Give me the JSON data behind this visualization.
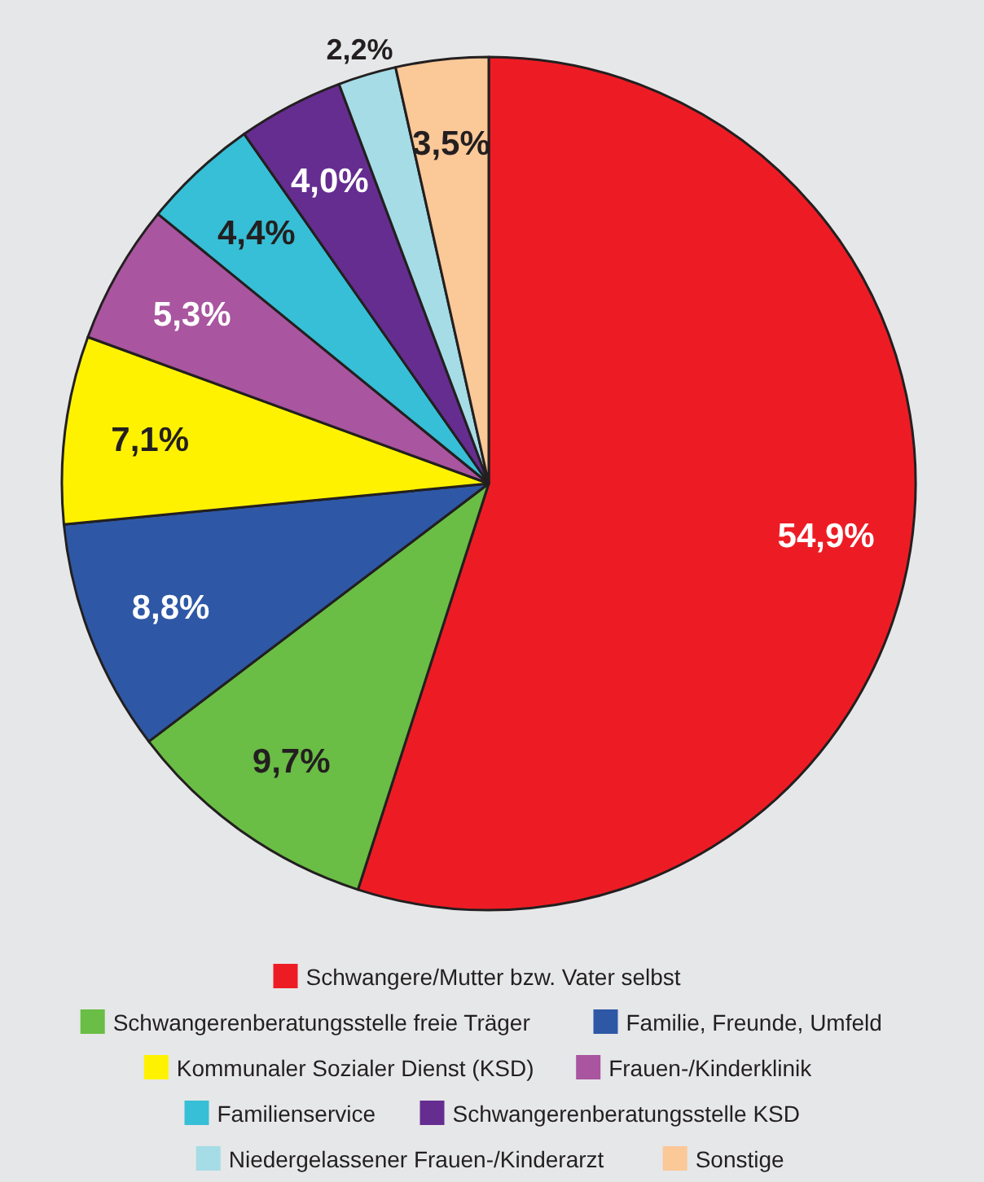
{
  "chart_data": {
    "type": "pie",
    "categories": [
      "Schwangere/Mutter bzw. Vater selbst",
      "Schwangerenberatungsstelle freie Träger",
      "Familie, Freunde, Umfeld",
      "Kommunaler Sozialer Dienst (KSD)",
      "Frauen-/Kinderklinik",
      "Familienservice",
      "Schwangerenberatungsstelle KSD",
      "Niedergelassener Frauen-/Kinderarzt",
      "Sonstige"
    ],
    "values": [
      54.9,
      9.7,
      8.8,
      7.1,
      5.3,
      4.4,
      4.0,
      2.2,
      3.5
    ],
    "value_labels": [
      "54,9%",
      "9,7%",
      "8,8%",
      "7,1%",
      "5,3%",
      "4,4%",
      "4,0%",
      "2,2%",
      "3,5%"
    ],
    "colors": [
      "#ed1c24",
      "#6abd45",
      "#2e58a6",
      "#fff200",
      "#a9559f",
      "#36bfd6",
      "#652d90",
      "#a5dce6",
      "#fbc898"
    ],
    "legend": "bottom"
  }
}
